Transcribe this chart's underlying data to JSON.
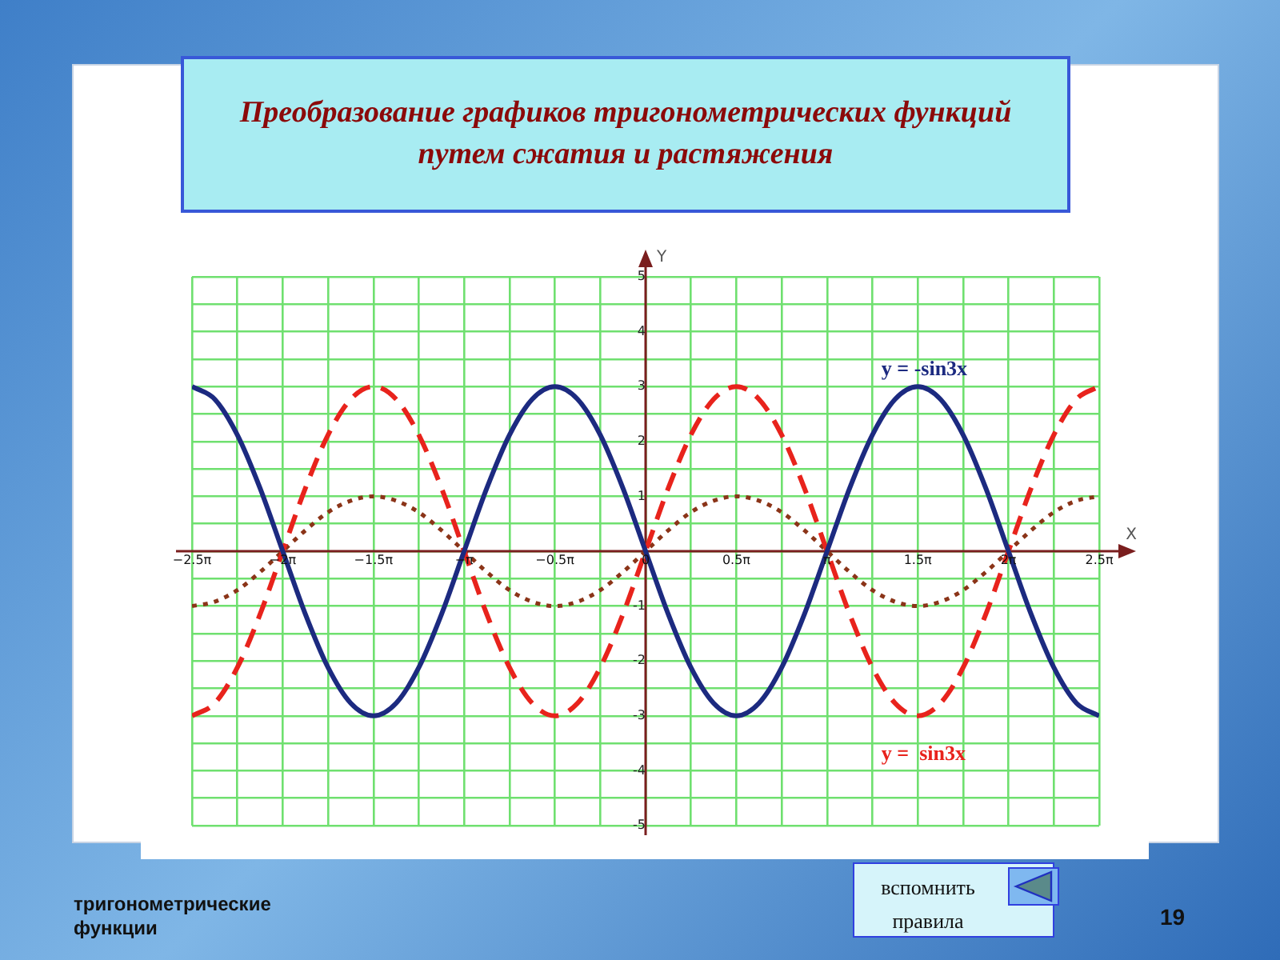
{
  "chart_data": {
    "type": "line",
    "title": "Преобразование графиков тригонометрических функций путем сжатия и растяжения",
    "xlabel": "X",
    "ylabel": "Y",
    "annotations": [
      "тригонометрические функции",
      "19",
      "вспомнить правила"
    ],
    "x": [
      -7.854,
      -7.461,
      -7.069,
      -6.676,
      -6.283,
      -5.89,
      -5.498,
      -5.105,
      -4.712,
      -4.32,
      -3.927,
      -3.534,
      -3.142,
      -2.749,
      -2.356,
      -1.963,
      -1.571,
      -1.178,
      -0.785,
      -0.393,
      0,
      0.393,
      0.785,
      1.178,
      1.571,
      1.963,
      2.356,
      2.749,
      3.142,
      3.534,
      3.927,
      4.32,
      4.712,
      5.105,
      5.498,
      5.89,
      6.283,
      6.676,
      7.069,
      7.461,
      7.854
    ],
    "series": [
      {
        "name": "y = -sin3x",
        "color": "#1c2a80",
        "line_style": "solid",
        "values": [
          3,
          2.77,
          2.12,
          1.15,
          0,
          -1.15,
          -2.12,
          -2.77,
          -3,
          -2.77,
          -2.12,
          -1.15,
          0,
          1.15,
          2.12,
          2.77,
          3,
          2.77,
          2.12,
          1.15,
          0,
          -1.15,
          -2.12,
          -2.77,
          -3,
          -2.77,
          -2.12,
          -1.15,
          0,
          1.15,
          2.12,
          2.77,
          3,
          2.77,
          2.12,
          1.15,
          0,
          -1.15,
          -2.12,
          -2.77,
          -3
        ]
      },
      {
        "name": "y =  sin3x",
        "color": "#e8231c",
        "line_style": "dashed",
        "values": [
          -3,
          -2.77,
          -2.12,
          -1.15,
          0,
          1.15,
          2.12,
          2.77,
          3,
          2.77,
          2.12,
          1.15,
          0,
          -1.15,
          -2.12,
          -2.77,
          -3,
          -2.77,
          -2.12,
          -1.15,
          0,
          1.15,
          2.12,
          2.77,
          3,
          2.77,
          2.12,
          1.15,
          0,
          -1.15,
          -2.12,
          -2.77,
          -3,
          -2.77,
          -2.12,
          -1.15,
          0,
          1.15,
          2.12,
          2.77,
          3
        ]
      },
      {
        "color": "#8b3418",
        "line_style": "dotted",
        "values": [
          -1,
          -0.92,
          -0.71,
          -0.38,
          0,
          0.38,
          0.71,
          0.92,
          1,
          0.92,
          0.71,
          0.38,
          0,
          -0.38,
          -0.71,
          -0.92,
          -1,
          -0.92,
          -0.71,
          -0.38,
          0,
          0.38,
          0.71,
          0.92,
          1,
          0.92,
          0.71,
          0.38,
          0,
          -0.38,
          -0.71,
          -0.92,
          -1,
          -0.92,
          -0.71,
          -0.38,
          0,
          0.38,
          0.71,
          0.92,
          1
        ]
      }
    ],
    "xlim": [
      -7.854,
      7.854
    ],
    "xticks": [
      {
        "value": -7.854,
        "label": "−2.5π"
      },
      {
        "value": -7.069,
        "label": null
      },
      {
        "value": -6.283,
        "label": "−2π"
      },
      {
        "value": -5.498,
        "label": null
      },
      {
        "value": -4.712,
        "label": "−1.5π"
      },
      {
        "value": -3.927,
        "label": null
      },
      {
        "value": -3.142,
        "label": "−π"
      },
      {
        "value": -2.356,
        "label": null
      },
      {
        "value": -1.571,
        "label": "−0.5π"
      },
      {
        "value": -0.785,
        "label": null
      },
      0,
      {
        "value": 0.785,
        "label": null
      },
      {
        "value": 1.571,
        "label": "0.5π"
      },
      {
        "value": 2.356,
        "label": null
      },
      {
        "value": 3.142,
        "label": "π"
      },
      {
        "value": 3.927,
        "label": null
      },
      {
        "value": 4.712,
        "label": "1.5π"
      },
      {
        "value": 5.498,
        "label": null
      },
      {
        "value": 6.283,
        "label": "2π"
      },
      {
        "value": 7.069,
        "label": null
      },
      {
        "value": 7.854,
        "label": "2.5π"
      }
    ],
    "ylim": [
      -5,
      5
    ],
    "yticks": [
      -5,
      {
        "value": -4.5,
        "label": null
      },
      -4,
      {
        "value": -3.5,
        "label": null
      },
      -3,
      {
        "value": -2.5,
        "label": null
      },
      -2,
      {
        "value": -1.5,
        "label": null
      },
      -1,
      {
        "value": -0.5,
        "label": null
      },
      {
        "value": 0,
        "label": null
      },
      {
        "value": 0.5,
        "label": null
      },
      1,
      {
        "value": 1.5,
        "label": null
      },
      2,
      {
        "value": 2.5,
        "label": null
      },
      3,
      {
        "value": 3.5,
        "label": null
      },
      4,
      {
        "value": 4.5,
        "label": null
      },
      5
    ],
    "grid": true,
    "marker": "none"
  }
}
